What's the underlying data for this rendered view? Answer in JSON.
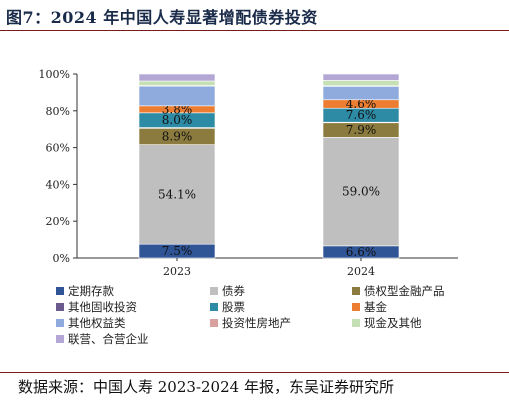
{
  "header": {
    "title": "图7：2024 年中国人寿显著增配债券投资"
  },
  "footer": {
    "source": "数据来源：中国人寿 2023-2024 年报，东吴证券研究所"
  },
  "chart_data": {
    "type": "bar",
    "stacked": true,
    "categories": [
      "2023",
      "2024"
    ],
    "ylim": [
      0,
      100
    ],
    "y_ticks": [
      "0%",
      "20%",
      "40%",
      "60%",
      "80%",
      "100%"
    ],
    "grid": false,
    "legend_position": "bottom",
    "series": [
      {
        "name": "定期存款",
        "values": [
          7.5,
          6.6
        ],
        "labels": [
          "7.5%",
          "6.6%"
        ],
        "color": "#2f5597"
      },
      {
        "name": "债券",
        "values": [
          54.1,
          59.0
        ],
        "labels": [
          "54.1%",
          "59.0%"
        ],
        "color": "#bfbfbf"
      },
      {
        "name": "债权型金融产品",
        "values": [
          8.9,
          7.9
        ],
        "labels": [
          "8.9%",
          "7.9%"
        ],
        "color": "#8c7b3e"
      },
      {
        "name": "其他固收投资",
        "values": [
          0.4,
          0.3
        ],
        "labels": [
          "",
          ""
        ],
        "color": "#6b5a8e"
      },
      {
        "name": "股票",
        "values": [
          8.0,
          7.6
        ],
        "labels": [
          "8.0%",
          "7.6%"
        ],
        "color": "#2e8ba6"
      },
      {
        "name": "基金",
        "values": [
          3.8,
          4.6
        ],
        "labels": [
          "3.8%",
          "4.6%"
        ],
        "color": "#ed7d31"
      },
      {
        "name": "其他权益类",
        "values": [
          10.7,
          7.3
        ],
        "labels": [
          "",
          ""
        ],
        "color": "#8faadc"
      },
      {
        "name": "投资性房地产",
        "values": [
          0.3,
          0.3
        ],
        "labels": [
          "",
          ""
        ],
        "color": "#d9a0a0"
      },
      {
        "name": "现金及其他",
        "values": [
          2.5,
          2.9
        ],
        "labels": [
          "",
          ""
        ],
        "color": "#c5e0b4"
      },
      {
        "name": "联营、合营企业",
        "values": [
          3.8,
          3.5
        ],
        "labels": [
          "",
          ""
        ],
        "color": "#b4a7d6"
      }
    ]
  }
}
